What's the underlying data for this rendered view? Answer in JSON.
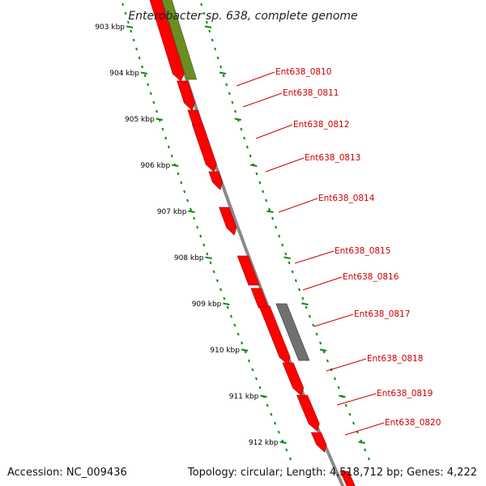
{
  "title": "Enterobacter sp. 638, complete genome",
  "footer": {
    "accession": "Accession: NC_009436",
    "topology": "Topology: circular; Length: 4,518,712 bp; Genes: 4,222"
  },
  "colors": {
    "cds": "#ff0000",
    "cds_dark": "#b40000",
    "rna": "#6b8e23",
    "pseudo": "#707070",
    "backbone": "#8a8a8a",
    "ruler": "#0a8a0a",
    "label": "#cc0000"
  },
  "ruler_labels": [
    "903 kbp",
    "904 kbp",
    "905 kbp",
    "906 kbp",
    "907 kbp",
    "908 kbp",
    "909 kbp",
    "910 kbp",
    "911 kbp",
    "912 kbp"
  ],
  "gene_labels": [
    "Ent638_0810",
    "Ent638_0811",
    "Ent638_0812",
    "Ent638_0813",
    "Ent638_0814",
    "Ent638_0815",
    "Ent638_0816",
    "Ent638_0817",
    "Ent638_0818",
    "Ent638_0819",
    "Ent638_0820"
  ]
}
